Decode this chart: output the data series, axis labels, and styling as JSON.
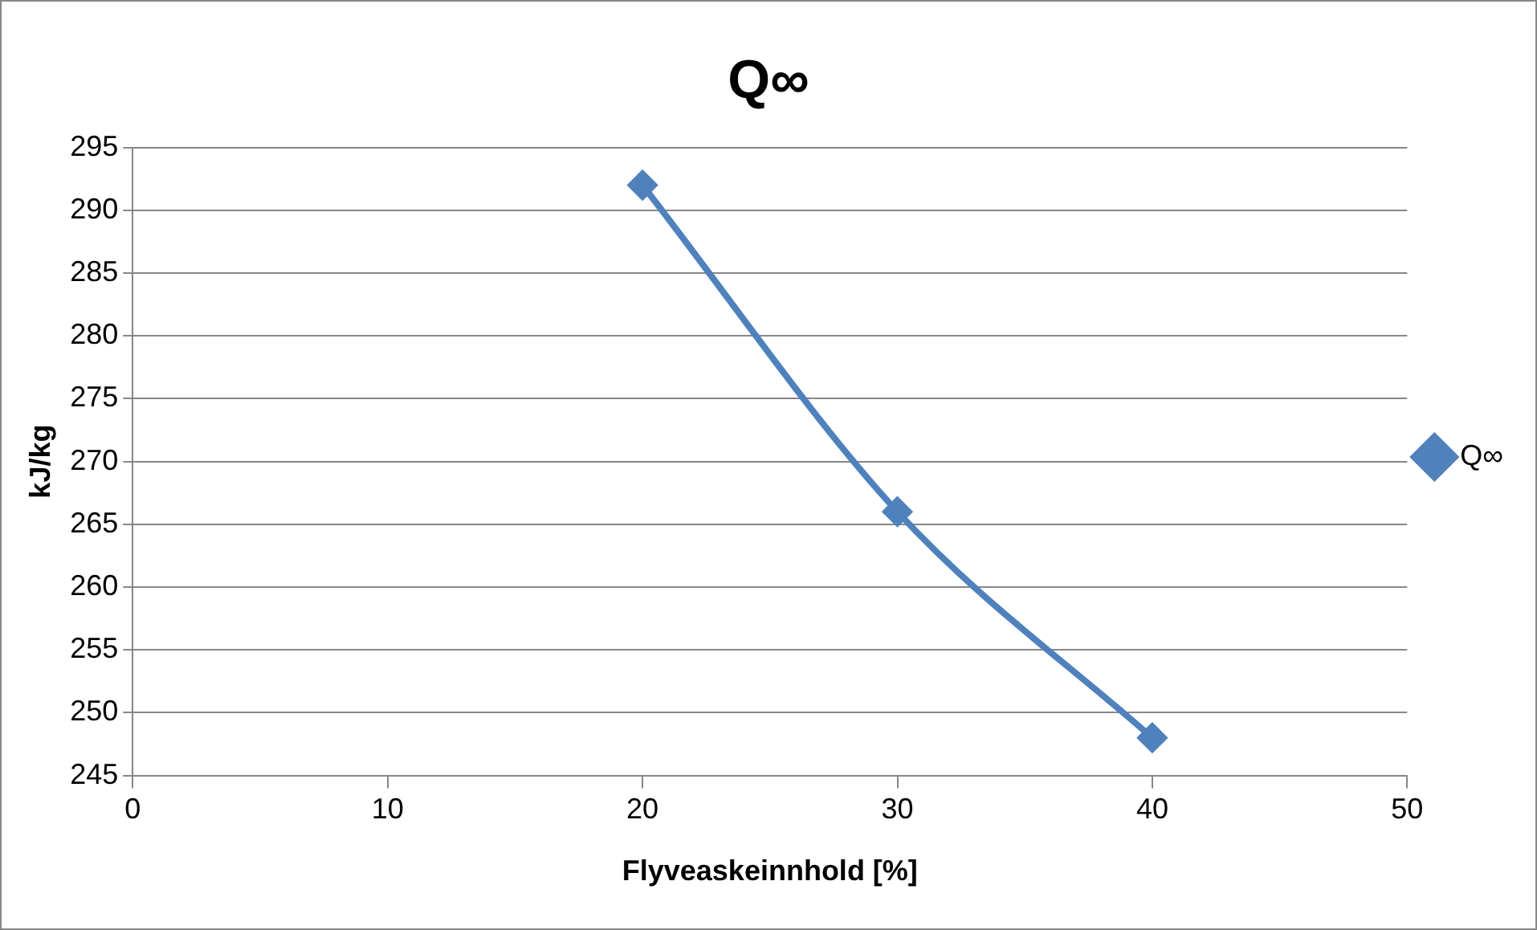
{
  "chart_data": {
    "type": "line",
    "title": "Q∞",
    "xlabel": "Flyveaskeinnhold [%]",
    "ylabel": "kJ/kg",
    "x": [
      20,
      30,
      40
    ],
    "series": [
      {
        "name": "Q∞",
        "color": "#4f81bd",
        "values": [
          292,
          266,
          248
        ]
      }
    ],
    "xlim": [
      0,
      50
    ],
    "xticks": [
      0,
      10,
      20,
      30,
      40,
      50
    ],
    "ylim": [
      245,
      295
    ],
    "yticks": [
      245,
      250,
      255,
      260,
      265,
      270,
      275,
      280,
      285,
      290,
      295
    ],
    "grid": "y",
    "legend": "right",
    "marker": "diamond",
    "line_style": "solid"
  }
}
